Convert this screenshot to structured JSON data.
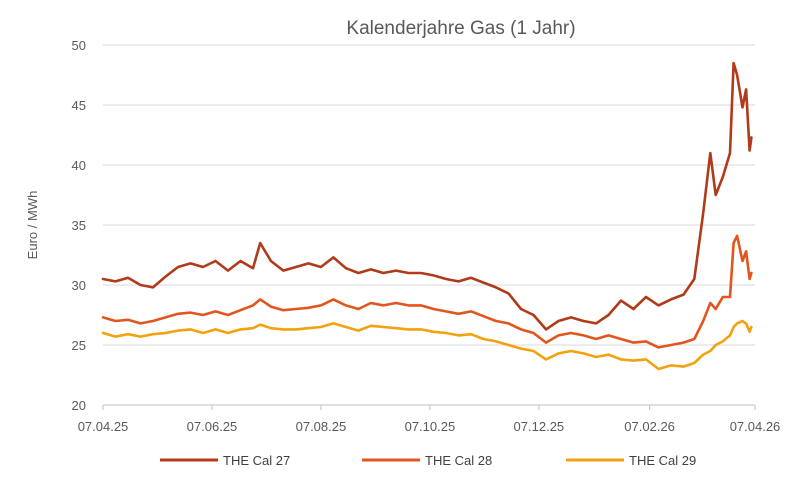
{
  "chart_data": {
    "type": "line",
    "title": "Kalenderjahre Gas (1 Jahr)",
    "xlabel": "",
    "ylabel": "Euro / MWh",
    "ylim": [
      20,
      50
    ],
    "yticks": [
      "20",
      "25",
      "30",
      "35",
      "40",
      "45",
      "50"
    ],
    "xlim": [
      "2025-04-07",
      "2026-04-07"
    ],
    "xticks": [
      "07.04.25",
      "07.06.25",
      "07.08.25",
      "07.10.25",
      "07.12.25",
      "07.02.26",
      "07.04.26"
    ],
    "grid": "horizontal",
    "legend": "bottom",
    "series": [
      {
        "name": "THE Cal 27",
        "color": "#B03A1A",
        "points": [
          [
            "2025-04-07",
            30.5
          ],
          [
            "2025-04-14",
            30.3
          ],
          [
            "2025-04-21",
            30.6
          ],
          [
            "2025-04-28",
            30.0
          ],
          [
            "2025-05-05",
            29.8
          ],
          [
            "2025-05-12",
            30.7
          ],
          [
            "2025-05-19",
            31.5
          ],
          [
            "2025-05-26",
            31.8
          ],
          [
            "2025-06-02",
            31.5
          ],
          [
            "2025-06-09",
            32.0
          ],
          [
            "2025-06-16",
            31.2
          ],
          [
            "2025-06-23",
            32.0
          ],
          [
            "2025-06-30",
            31.4
          ],
          [
            "2025-07-04",
            33.5
          ],
          [
            "2025-07-10",
            32.0
          ],
          [
            "2025-07-17",
            31.2
          ],
          [
            "2025-07-24",
            31.5
          ],
          [
            "2025-07-31",
            31.8
          ],
          [
            "2025-08-07",
            31.5
          ],
          [
            "2025-08-14",
            32.3
          ],
          [
            "2025-08-21",
            31.4
          ],
          [
            "2025-08-28",
            31.0
          ],
          [
            "2025-09-04",
            31.3
          ],
          [
            "2025-09-11",
            31.0
          ],
          [
            "2025-09-18",
            31.2
          ],
          [
            "2025-09-25",
            31.0
          ],
          [
            "2025-10-02",
            31.0
          ],
          [
            "2025-10-09",
            30.8
          ],
          [
            "2025-10-16",
            30.5
          ],
          [
            "2025-10-23",
            30.3
          ],
          [
            "2025-10-30",
            30.6
          ],
          [
            "2025-11-06",
            30.2
          ],
          [
            "2025-11-13",
            29.8
          ],
          [
            "2025-11-20",
            29.3
          ],
          [
            "2025-11-27",
            28.0
          ],
          [
            "2025-12-04",
            27.5
          ],
          [
            "2025-12-11",
            26.3
          ],
          [
            "2025-12-18",
            27.0
          ],
          [
            "2025-12-25",
            27.3
          ],
          [
            "2026-01-01",
            27.0
          ],
          [
            "2026-01-08",
            26.8
          ],
          [
            "2026-01-15",
            27.5
          ],
          [
            "2026-01-22",
            28.7
          ],
          [
            "2026-01-29",
            28.0
          ],
          [
            "2026-02-05",
            29.0
          ],
          [
            "2026-02-12",
            28.3
          ],
          [
            "2026-02-19",
            28.8
          ],
          [
            "2026-02-26",
            29.2
          ],
          [
            "2026-03-04",
            30.5
          ],
          [
            "2026-03-09",
            36.0
          ],
          [
            "2026-03-13",
            41.0
          ],
          [
            "2026-03-16",
            37.5
          ],
          [
            "2026-03-20",
            39.0
          ],
          [
            "2026-03-24",
            41.0
          ],
          [
            "2026-03-26",
            48.5
          ],
          [
            "2026-03-28",
            47.5
          ],
          [
            "2026-03-31",
            44.8
          ],
          [
            "2026-04-02",
            46.3
          ],
          [
            "2026-04-04",
            41.2
          ],
          [
            "2026-04-05",
            42.3
          ]
        ]
      },
      {
        "name": "THE Cal 28",
        "color": "#E0561E",
        "points": [
          [
            "2025-04-07",
            27.3
          ],
          [
            "2025-04-14",
            27.0
          ],
          [
            "2025-04-21",
            27.1
          ],
          [
            "2025-04-28",
            26.8
          ],
          [
            "2025-05-05",
            27.0
          ],
          [
            "2025-05-12",
            27.3
          ],
          [
            "2025-05-19",
            27.6
          ],
          [
            "2025-05-26",
            27.7
          ],
          [
            "2025-06-02",
            27.5
          ],
          [
            "2025-06-09",
            27.8
          ],
          [
            "2025-06-16",
            27.5
          ],
          [
            "2025-06-23",
            27.9
          ],
          [
            "2025-06-30",
            28.3
          ],
          [
            "2025-07-04",
            28.8
          ],
          [
            "2025-07-10",
            28.2
          ],
          [
            "2025-07-17",
            27.9
          ],
          [
            "2025-07-24",
            28.0
          ],
          [
            "2025-07-31",
            28.1
          ],
          [
            "2025-08-07",
            28.3
          ],
          [
            "2025-08-14",
            28.8
          ],
          [
            "2025-08-21",
            28.3
          ],
          [
            "2025-08-28",
            28.0
          ],
          [
            "2025-09-04",
            28.5
          ],
          [
            "2025-09-11",
            28.3
          ],
          [
            "2025-09-18",
            28.5
          ],
          [
            "2025-09-25",
            28.3
          ],
          [
            "2025-10-02",
            28.3
          ],
          [
            "2025-10-09",
            28.0
          ],
          [
            "2025-10-16",
            27.8
          ],
          [
            "2025-10-23",
            27.6
          ],
          [
            "2025-10-30",
            27.8
          ],
          [
            "2025-11-06",
            27.4
          ],
          [
            "2025-11-13",
            27.0
          ],
          [
            "2025-11-20",
            26.8
          ],
          [
            "2025-11-27",
            26.3
          ],
          [
            "2025-12-04",
            26.0
          ],
          [
            "2025-12-11",
            25.2
          ],
          [
            "2025-12-18",
            25.8
          ],
          [
            "2025-12-25",
            26.0
          ],
          [
            "2026-01-01",
            25.8
          ],
          [
            "2026-01-08",
            25.5
          ],
          [
            "2026-01-15",
            25.8
          ],
          [
            "2026-01-22",
            25.5
          ],
          [
            "2026-01-29",
            25.2
          ],
          [
            "2026-02-05",
            25.3
          ],
          [
            "2026-02-12",
            24.8
          ],
          [
            "2026-02-19",
            25.0
          ],
          [
            "2026-02-26",
            25.2
          ],
          [
            "2026-03-04",
            25.5
          ],
          [
            "2026-03-09",
            27.0
          ],
          [
            "2026-03-13",
            28.5
          ],
          [
            "2026-03-16",
            28.0
          ],
          [
            "2026-03-20",
            29.0
          ],
          [
            "2026-03-24",
            29.0
          ],
          [
            "2026-03-26",
            33.5
          ],
          [
            "2026-03-28",
            34.1
          ],
          [
            "2026-03-31",
            32.0
          ],
          [
            "2026-04-02",
            32.8
          ],
          [
            "2026-04-04",
            30.5
          ],
          [
            "2026-04-05",
            31.0
          ]
        ]
      },
      {
        "name": "THE Cal 29",
        "color": "#F2A20F",
        "points": [
          [
            "2025-04-07",
            26.0
          ],
          [
            "2025-04-14",
            25.7
          ],
          [
            "2025-04-21",
            25.9
          ],
          [
            "2025-04-28",
            25.7
          ],
          [
            "2025-05-05",
            25.9
          ],
          [
            "2025-05-12",
            26.0
          ],
          [
            "2025-05-19",
            26.2
          ],
          [
            "2025-05-26",
            26.3
          ],
          [
            "2025-06-02",
            26.0
          ],
          [
            "2025-06-09",
            26.3
          ],
          [
            "2025-06-16",
            26.0
          ],
          [
            "2025-06-23",
            26.3
          ],
          [
            "2025-06-30",
            26.4
          ],
          [
            "2025-07-04",
            26.7
          ],
          [
            "2025-07-10",
            26.4
          ],
          [
            "2025-07-17",
            26.3
          ],
          [
            "2025-07-24",
            26.3
          ],
          [
            "2025-07-31",
            26.4
          ],
          [
            "2025-08-07",
            26.5
          ],
          [
            "2025-08-14",
            26.8
          ],
          [
            "2025-08-21",
            26.5
          ],
          [
            "2025-08-28",
            26.2
          ],
          [
            "2025-09-04",
            26.6
          ],
          [
            "2025-09-11",
            26.5
          ],
          [
            "2025-09-18",
            26.4
          ],
          [
            "2025-09-25",
            26.3
          ],
          [
            "2025-10-02",
            26.3
          ],
          [
            "2025-10-09",
            26.1
          ],
          [
            "2025-10-16",
            26.0
          ],
          [
            "2025-10-23",
            25.8
          ],
          [
            "2025-10-30",
            25.9
          ],
          [
            "2025-11-06",
            25.5
          ],
          [
            "2025-11-13",
            25.3
          ],
          [
            "2025-11-20",
            25.0
          ],
          [
            "2025-11-27",
            24.7
          ],
          [
            "2025-12-04",
            24.5
          ],
          [
            "2025-12-11",
            23.8
          ],
          [
            "2025-12-18",
            24.3
          ],
          [
            "2025-12-25",
            24.5
          ],
          [
            "2026-01-01",
            24.3
          ],
          [
            "2026-01-08",
            24.0
          ],
          [
            "2026-01-15",
            24.2
          ],
          [
            "2026-01-22",
            23.8
          ],
          [
            "2026-01-29",
            23.7
          ],
          [
            "2026-02-05",
            23.8
          ],
          [
            "2026-02-12",
            23.0
          ],
          [
            "2026-02-19",
            23.3
          ],
          [
            "2026-02-26",
            23.2
          ],
          [
            "2026-03-04",
            23.5
          ],
          [
            "2026-03-09",
            24.2
          ],
          [
            "2026-03-13",
            24.5
          ],
          [
            "2026-03-16",
            25.0
          ],
          [
            "2026-03-20",
            25.3
          ],
          [
            "2026-03-24",
            25.8
          ],
          [
            "2026-03-26",
            26.5
          ],
          [
            "2026-03-28",
            26.8
          ],
          [
            "2026-03-31",
            27.0
          ],
          [
            "2026-04-02",
            26.8
          ],
          [
            "2026-04-04",
            26.1
          ],
          [
            "2026-04-05",
            26.5
          ]
        ]
      }
    ]
  }
}
